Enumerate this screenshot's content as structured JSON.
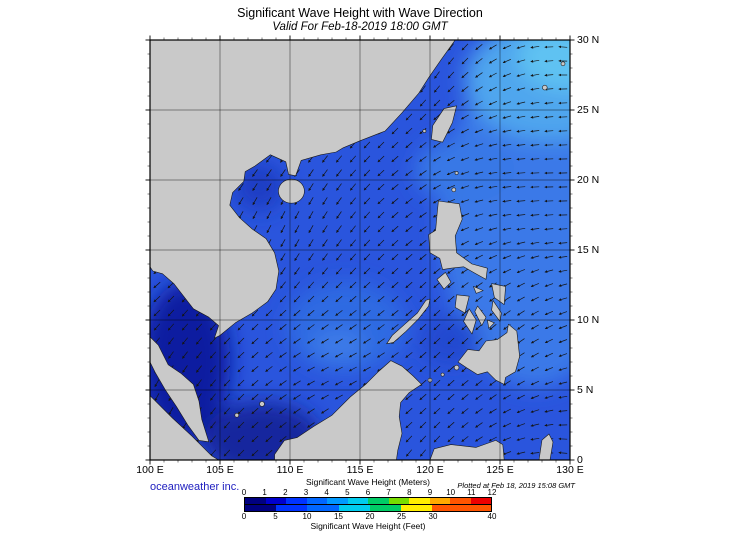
{
  "header": {
    "title": "Significant Wave Height with Wave Direction",
    "subtitle": "Valid For Feb-18-2019 18:00 GMT"
  },
  "map": {
    "lat_labels": [
      "30 N",
      "25 N",
      "20 N",
      "15 N",
      "10 N",
      "5 N",
      "0"
    ],
    "lon_labels": [
      "100 E",
      "105 E",
      "110 E",
      "115 E",
      "120 E",
      "125 E",
      "130 E"
    ],
    "colors": {
      "ocean": "#2a55dd",
      "land": "#c9c9c9",
      "coastline": "#1a1a1a",
      "arrow": "#151515"
    }
  },
  "footer": {
    "credit": "oceanweather inc.",
    "plotted": "Plotted at Feb 18, 2019 15:08 GMT"
  },
  "legend": {
    "meters_label": "Significant Wave Height (Meters)",
    "feet_label": "Significant Wave Height (Feet)",
    "meters_ticks": [
      "0",
      "1",
      "2",
      "3",
      "4",
      "5",
      "6",
      "7",
      "8",
      "9",
      "10",
      "11",
      "12"
    ],
    "feet_ticks": [
      "0",
      "5",
      "10",
      "15",
      "20",
      "25",
      "30",
      "40"
    ],
    "colors": [
      "#000080",
      "#0000cd",
      "#0033ff",
      "#0066ff",
      "#0099ff",
      "#00ccee",
      "#00cc66",
      "#77dd00",
      "#ffee00",
      "#ffaa00",
      "#ff5500",
      "#ee0000"
    ]
  }
}
